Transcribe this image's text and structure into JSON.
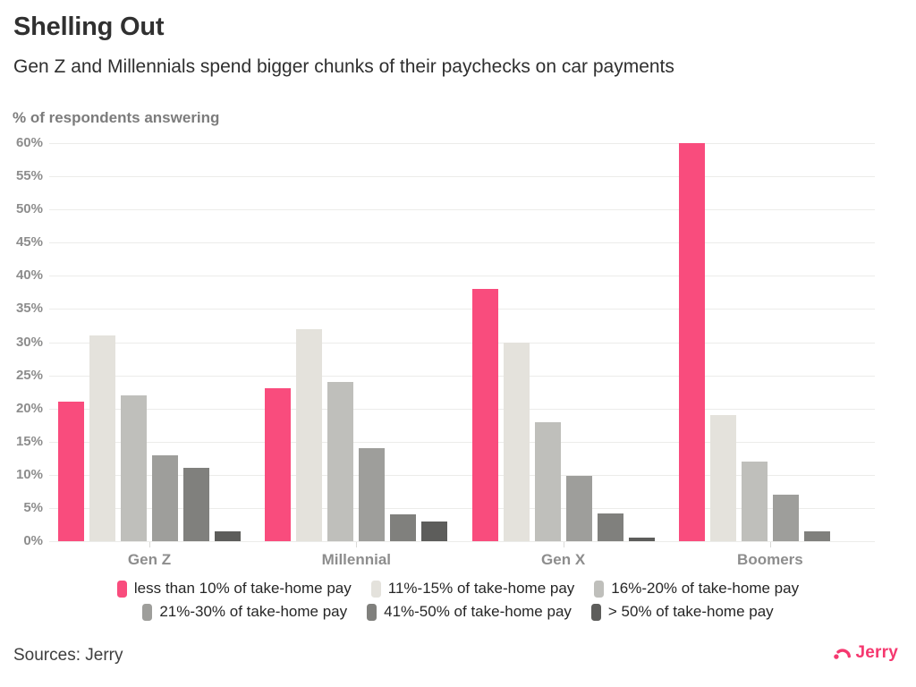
{
  "header": {
    "title": "Shelling Out",
    "subtitle": "Gen Z and Millennials spend bigger chunks of their paychecks on car payments"
  },
  "chart_data": {
    "type": "bar",
    "title": "Shelling Out",
    "subtitle": "Gen Z and Millennials spend bigger chunks of their paychecks on car payments",
    "xlabel": "",
    "ylabel": "% of respondents answering",
    "categories": [
      "Gen Z",
      "Millennial",
      "Gen X",
      "Boomers"
    ],
    "series": [
      {
        "name": "less than 10% of take-home pay",
        "color": "#F94C7D",
        "values": [
          21,
          23,
          38,
          60
        ]
      },
      {
        "name": "11%-15% of take-home pay",
        "color": "#E4E2DC",
        "values": [
          31,
          32,
          30,
          19
        ]
      },
      {
        "name": "16%-20% of take-home pay",
        "color": "#BFBFBB",
        "values": [
          22,
          24,
          18,
          12
        ]
      },
      {
        "name": "21%-30% of take-home pay",
        "color": "#9E9E9B",
        "values": [
          13,
          14,
          9.8,
          7
        ]
      },
      {
        "name": "41%-50% of take-home pay",
        "color": "#80807D",
        "values": [
          11,
          4,
          4.2,
          1.5
        ]
      },
      {
        "name": "> 50% of take-home pay",
        "color": "#5D5D5B",
        "values": [
          1.5,
          3,
          0.5,
          0
        ]
      }
    ],
    "ylim": [
      0,
      60
    ],
    "ytick_step": 5,
    "ytick_suffix": "%",
    "grid": true,
    "legend_position": "bottom",
    "legend_items_per_row": 3
  },
  "footer": {
    "source": "Sources: Jerry",
    "logo_text": "Jerry",
    "logo_color": "#F5386F"
  }
}
